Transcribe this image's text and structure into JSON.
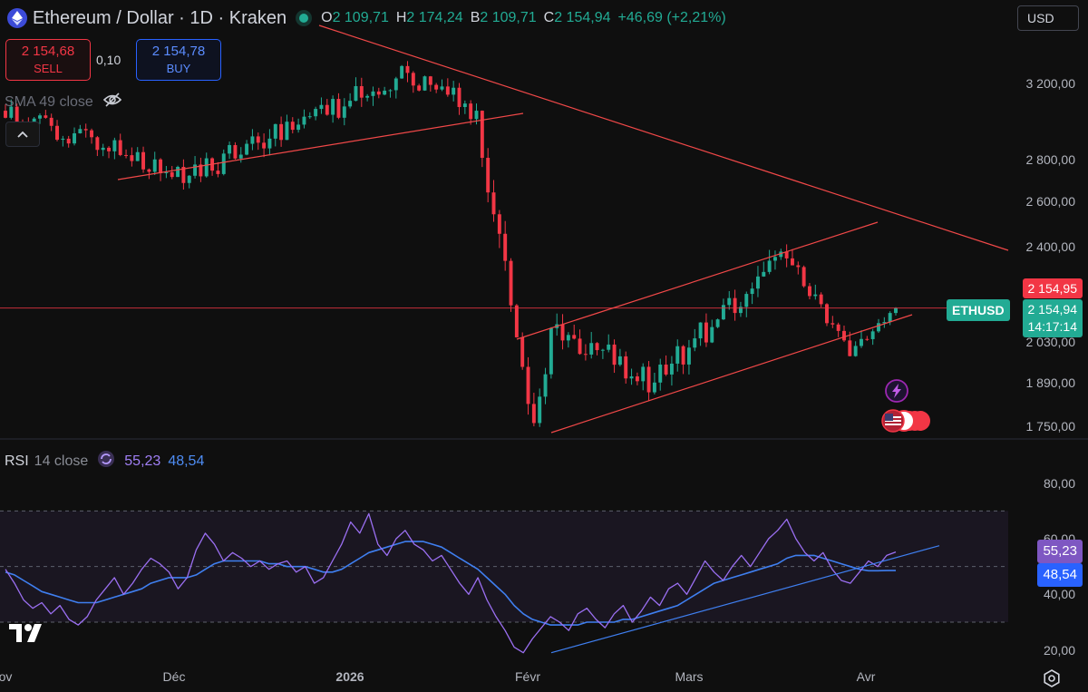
{
  "header": {
    "title": "Ethereum / Dollar · 1D · Kraken",
    "ohlc": [
      {
        "key": "O",
        "value": "2 109,71"
      },
      {
        "key": "H",
        "value": "2 174,24"
      },
      {
        "key": "B",
        "value": "2 109,71"
      },
      {
        "key": "C",
        "value": "2 154,94"
      }
    ],
    "change": "+46,69 (+2,21%)",
    "currency": "USD"
  },
  "trade": {
    "sell_price": "2 154,68",
    "sell_label": "SELL",
    "spread": "0,10",
    "buy_price": "2 154,78",
    "buy_label": "BUY"
  },
  "indicators": {
    "sma": "SMA 49 close",
    "rsi_name": "RSI",
    "rsi_params": "14 close",
    "rsi_value": "55,23",
    "rsi_ma_value": "48,54"
  },
  "price_tags": {
    "high": "2 154,95",
    "symbol": "ETHUSD",
    "last": "2 154,94",
    "countdown": "14:17:14"
  },
  "colors": {
    "up": "#22ab94",
    "down": "#f23645",
    "rsi": "#9b6ff2",
    "rsi_ma": "#3f7ff0",
    "trendline": "#f04848",
    "background": "#0f0f0f"
  },
  "chart_data": [
    {
      "type": "candlestick",
      "title": "Ethereum / Dollar · 1D · Kraken",
      "xlabel": "",
      "ylabel": "",
      "x_ticks": [
        "ov",
        "Déc",
        "2026",
        "Févr",
        "Mars",
        "Avr"
      ],
      "y_ticks": [
        "3 200,00",
        "2 800,00",
        "2 600,00",
        "2 400,00",
        "2 030,00",
        "1 890,00",
        "1 750,00"
      ],
      "y_scale": "log",
      "y_range": [
        1710,
        3600
      ],
      "series": [
        {
          "name": "ETHUSD",
          "segments": [
            {
              "days": 33,
              "from": 3050,
              "to": 2720,
              "vol": 0.018,
              "seed": 1
            },
            {
              "days": 38,
              "from": 2720,
              "to": 3260,
              "vol": 0.022,
              "seed": 2
            },
            {
              "days": 12,
              "from": 3260,
              "to": 3050,
              "vol": 0.02,
              "seed": 3
            },
            {
              "days": 10,
              "from": 3050,
              "to": 1760,
              "vol": 0.035,
              "seed": 4
            },
            {
              "days": 3,
              "from": 1760,
              "to": 2080,
              "vol": 0.03,
              "seed": 5
            },
            {
              "days": 18,
              "from": 2080,
              "to": 1890,
              "vol": 0.025,
              "seed": 6
            },
            {
              "days": 22,
              "from": 1890,
              "to": 2380,
              "vol": 0.025,
              "seed": 7
            },
            {
              "days": 12,
              "from": 2380,
              "to": 1980,
              "vol": 0.022,
              "seed": 8
            },
            {
              "days": 8,
              "from": 1980,
              "to": 2154.94,
              "vol": 0.02,
              "seed": 9
            }
          ]
        }
      ],
      "last_close": 2154.94
    },
    {
      "type": "line",
      "title": "RSI 14 close",
      "y_ticks": [
        "80,00",
        "60,00",
        "40,00",
        "20,00"
      ],
      "y_range": [
        15,
        85
      ],
      "band": [
        30,
        70
      ],
      "mid": 50,
      "series": [
        {
          "name": "RSI",
          "values": [
            49,
            44,
            38,
            35,
            37,
            33,
            36,
            31,
            29,
            32,
            38,
            42,
            46,
            40,
            44,
            49,
            53,
            51,
            48,
            42,
            46,
            56,
            62,
            58,
            52,
            55,
            53,
            50,
            52,
            49,
            51,
            52,
            48,
            50,
            44,
            46,
            52,
            58,
            66,
            62,
            69,
            58,
            54,
            60,
            63,
            58,
            56,
            52,
            54,
            49,
            44,
            40,
            46,
            38,
            32,
            27,
            21,
            19,
            24,
            28,
            32,
            30,
            27,
            33,
            35,
            31,
            28,
            33,
            36,
            30,
            34,
            39,
            36,
            42,
            44,
            40,
            46,
            52,
            48,
            45,
            50,
            54,
            50,
            55,
            60,
            63,
            67,
            60,
            55,
            52,
            55,
            49,
            45,
            44,
            48,
            52,
            50,
            54,
            55.23
          ]
        },
        {
          "name": "RSI-based MA",
          "values": [
            48,
            47,
            45,
            43,
            41,
            40,
            39,
            38,
            37,
            37,
            37,
            38,
            39,
            40,
            41,
            42,
            44,
            45,
            46,
            46,
            46,
            47,
            49,
            51,
            52,
            52,
            52,
            52,
            52,
            51,
            51,
            50,
            50,
            50,
            49,
            48,
            48,
            49,
            51,
            53,
            55,
            56,
            57,
            58,
            59,
            59,
            59,
            58,
            57,
            55,
            53,
            51,
            49,
            46,
            43,
            40,
            36,
            33,
            31,
            30,
            29,
            29,
            29,
            29,
            30,
            30,
            30,
            30,
            31,
            31,
            32,
            33,
            34,
            35,
            36,
            38,
            40,
            42,
            44,
            45,
            46,
            47,
            48,
            49,
            50,
            51,
            53,
            54,
            54,
            54,
            53,
            52,
            51,
            50,
            49,
            48.5,
            48.5,
            48.54,
            48.54
          ]
        }
      ]
    }
  ],
  "axes": {
    "price_labels": [
      {
        "text": "3 200,00",
        "value": 3200
      },
      {
        "text": "2 800,00",
        "value": 2800
      },
      {
        "text": "2 600,00",
        "value": 2600
      },
      {
        "text": "2 400,00",
        "value": 2400
      },
      {
        "text": "2 030,00",
        "value": 2030
      },
      {
        "text": "1 890,00",
        "value": 1890
      },
      {
        "text": "1 750,00",
        "value": 1750
      }
    ],
    "rsi_labels": [
      {
        "text": "80,00",
        "value": 80
      },
      {
        "text": "60,00",
        "value": 60
      },
      {
        "text": "40,00",
        "value": 40
      },
      {
        "text": "20,00",
        "value": 20
      }
    ],
    "time_labels": [
      "ov",
      "Déc",
      "2026",
      "Févr",
      "Mars",
      "Avr"
    ]
  }
}
